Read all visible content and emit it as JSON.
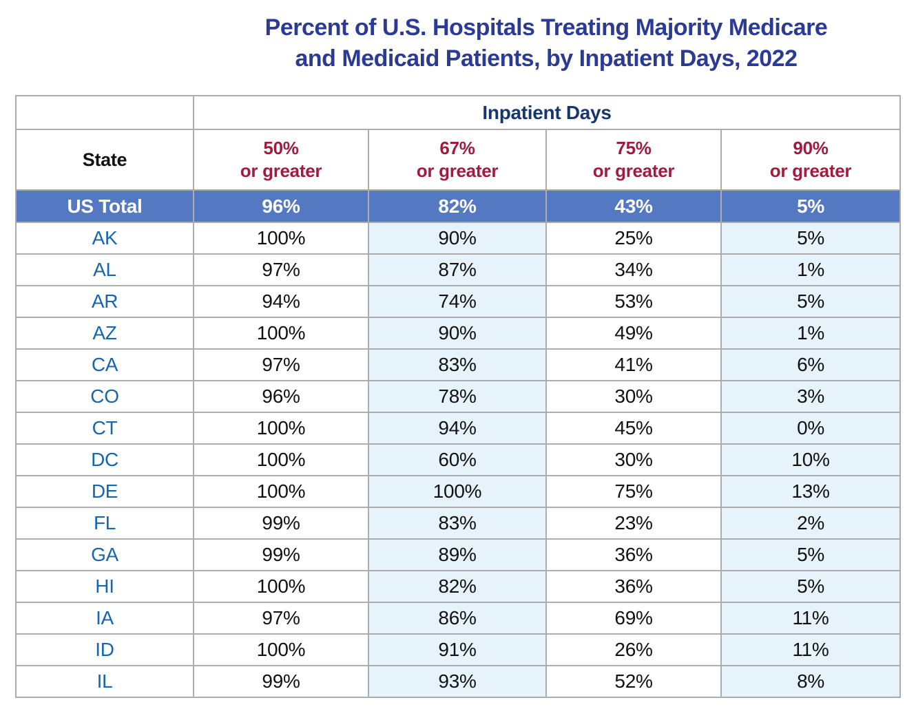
{
  "chart_data": {
    "type": "table",
    "title": "Percent of U.S. Hospitals Treating Majority Medicare and Medicaid Patients, by Inpatient Days, 2022",
    "title_lines": [
      "Percent of U.S. Hospitals Treating Majority Medicare",
      "and Medicaid Patients, by Inpatient Days, 2022"
    ],
    "column_group_header": "Inpatient Days",
    "state_header": "State",
    "column_headers": [
      {
        "pct": "50%",
        "suffix": "or greater"
      },
      {
        "pct": "67%",
        "suffix": "or greater"
      },
      {
        "pct": "75%",
        "suffix": "or greater"
      },
      {
        "pct": "90%",
        "suffix": "or greater"
      }
    ],
    "total_row": {
      "label": "US Total",
      "values": [
        "96%",
        "82%",
        "43%",
        "5%"
      ]
    },
    "rows": [
      {
        "state": "AK",
        "values": [
          "100%",
          "90%",
          "25%",
          "5%"
        ]
      },
      {
        "state": "AL",
        "values": [
          "97%",
          "87%",
          "34%",
          "1%"
        ]
      },
      {
        "state": "AR",
        "values": [
          "94%",
          "74%",
          "53%",
          "5%"
        ]
      },
      {
        "state": "AZ",
        "values": [
          "100%",
          "90%",
          "49%",
          "1%"
        ]
      },
      {
        "state": "CA",
        "values": [
          "97%",
          "83%",
          "41%",
          "6%"
        ]
      },
      {
        "state": "CO",
        "values": [
          "96%",
          "78%",
          "30%",
          "3%"
        ]
      },
      {
        "state": "CT",
        "values": [
          "100%",
          "94%",
          "45%",
          "0%"
        ]
      },
      {
        "state": "DC",
        "values": [
          "100%",
          "60%",
          "30%",
          "10%"
        ]
      },
      {
        "state": "DE",
        "values": [
          "100%",
          "100%",
          "75%",
          "13%"
        ]
      },
      {
        "state": "FL",
        "values": [
          "99%",
          "83%",
          "23%",
          "2%"
        ]
      },
      {
        "state": "GA",
        "values": [
          "99%",
          "89%",
          "36%",
          "5%"
        ]
      },
      {
        "state": "HI",
        "values": [
          "100%",
          "82%",
          "36%",
          "5%"
        ]
      },
      {
        "state": "IA",
        "values": [
          "97%",
          "86%",
          "69%",
          "11%"
        ]
      },
      {
        "state": "ID",
        "values": [
          "100%",
          "91%",
          "26%",
          "11%"
        ]
      },
      {
        "state": "IL",
        "values": [
          "99%",
          "93%",
          "52%",
          "8%"
        ]
      }
    ],
    "shaded_value_columns": [
      1,
      3
    ]
  },
  "colors": {
    "title_blue": "#2B3A92",
    "banner_navy": "#16366D",
    "header_red": "#A01B3D",
    "state_blue": "#1565AF",
    "total_bg": "#5478C1",
    "total_text": "#FFFFFF",
    "shaded_bg": "#E7F3FB",
    "border_gray": "#ACACAC",
    "text_black": "#111111"
  }
}
